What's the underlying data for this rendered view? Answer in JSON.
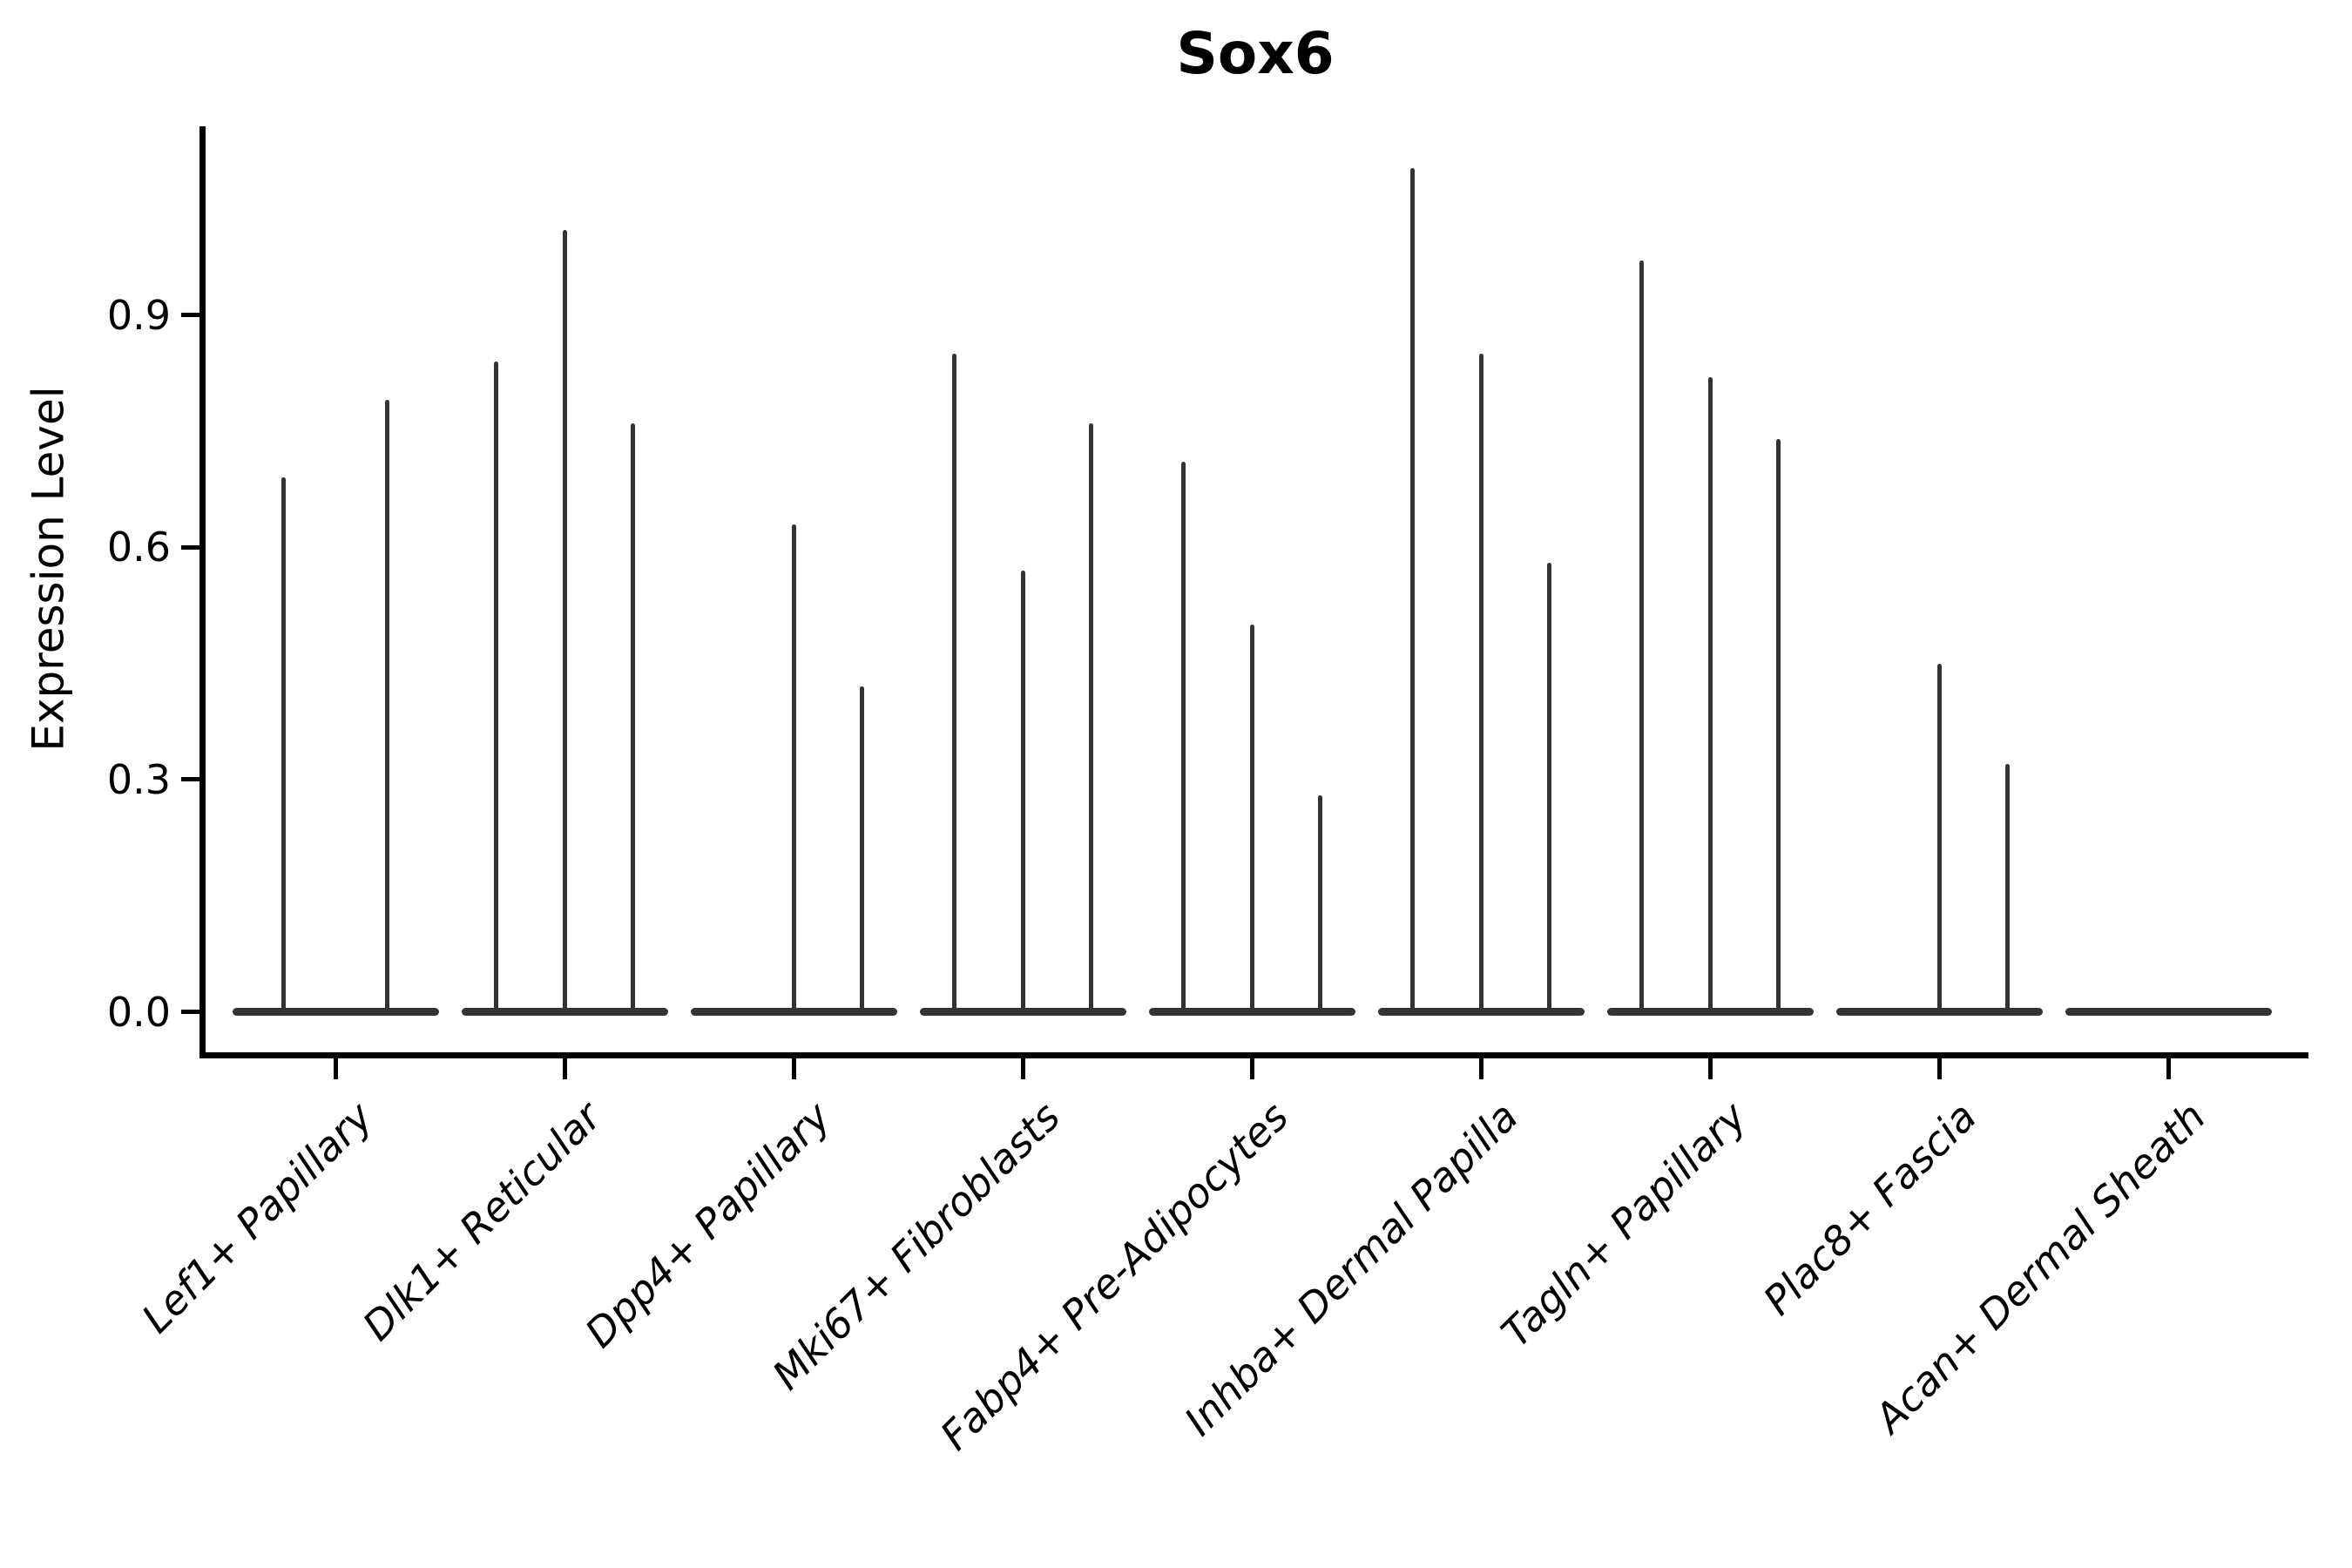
{
  "chart": {
    "title": "Sox6",
    "y_axis": {
      "label": "Expression Level",
      "tick_labels": [
        "0.0",
        "0.3",
        "0.6",
        "0.9"
      ]
    },
    "x_axis": {
      "categories": [
        "Lef1+ Papillary",
        "Dlk1+ Reticular",
        "Dpp4+ Papillary",
        "Mki67+ Fibroblasts",
        "Fabp4+ Pre-Adipocytes",
        "Inhba+ Dermal Papilla",
        "Tagln+ Papillary",
        "Plac8+ Fascia",
        "Acan+ Dermal Sheath"
      ]
    }
  },
  "chart_data": {
    "type": "violin",
    "title": "Sox6",
    "xlabel": "",
    "ylabel": "Expression Level",
    "yticks": [
      0.0,
      0.3,
      0.6,
      0.9
    ],
    "ylim": [
      -0.056,
      1.144
    ],
    "grid": false,
    "legend": false,
    "style_note": "Needle-thin black violins (near-zero width) rising from a flat collapsed baseline at 0; dodged sub-violins per category; x labels rotated 45 degrees italic.",
    "categories": [
      "Lef1+ Papillary",
      "Dlk1+ Reticular",
      "Dpp4+ Papillary",
      "Mki67+ Fibroblasts",
      "Fabp4+ Pre-Adipocytes",
      "Inhba+ Dermal Papilla",
      "Tagln+ Papillary",
      "Plac8+ Fascia",
      "Acan+ Dermal Sheath"
    ],
    "groups": [
      {
        "category": "Lef1+ Papillary",
        "violins": [
          {
            "offset": -0.225,
            "peak": 0.69
          },
          {
            "offset": 0.225,
            "peak": 0.79
          }
        ]
      },
      {
        "category": "Dlk1+ Reticular",
        "violins": [
          {
            "offset": -0.3,
            "peak": 0.84
          },
          {
            "offset": 0,
            "peak": 1.01
          },
          {
            "offset": 0.3,
            "peak": 0.76
          }
        ]
      },
      {
        "category": "Dpp4+ Papillary",
        "violins": [
          {
            "offset": -0.3,
            "peak": 0
          },
          {
            "offset": 0,
            "peak": 0.63
          },
          {
            "offset": 0.3,
            "peak": 0.42
          }
        ]
      },
      {
        "category": "Mki67+ Fibroblasts",
        "violins": [
          {
            "offset": -0.3,
            "peak": 0.85
          },
          {
            "offset": 0,
            "peak": 0.57
          },
          {
            "offset": 0.3,
            "peak": 0.76
          }
        ]
      },
      {
        "category": "Fabp4+ Pre-Adipocytes",
        "violins": [
          {
            "offset": -0.3,
            "peak": 0.71
          },
          {
            "offset": 0,
            "peak": 0.5
          },
          {
            "offset": 0.3,
            "peak": 0.28
          }
        ]
      },
      {
        "category": "Inhba+ Dermal Papilla",
        "violins": [
          {
            "offset": -0.3,
            "peak": 1.09
          },
          {
            "offset": 0,
            "peak": 0.85
          },
          {
            "offset": 0.3,
            "peak": 0.58
          }
        ]
      },
      {
        "category": "Tagln+ Papillary",
        "violins": [
          {
            "offset": -0.3,
            "peak": 0.97
          },
          {
            "offset": 0,
            "peak": 0.82
          },
          {
            "offset": 0.3,
            "peak": 0.74
          }
        ]
      },
      {
        "category": "Plac8+ Fascia",
        "violins": [
          {
            "offset": -0.3,
            "peak": 0
          },
          {
            "offset": 0,
            "peak": 0.45
          },
          {
            "offset": 0.3,
            "peak": 0.32
          }
        ]
      },
      {
        "category": "Acan+ Dermal Sheath",
        "violins": [
          {
            "offset": -0.3,
            "peak": 0
          },
          {
            "offset": 0,
            "peak": 0
          },
          {
            "offset": 0.3,
            "peak": 0
          }
        ]
      }
    ],
    "colors": {
      "violin": "#333333",
      "axis": "#000000",
      "background": "#ffffff"
    }
  }
}
